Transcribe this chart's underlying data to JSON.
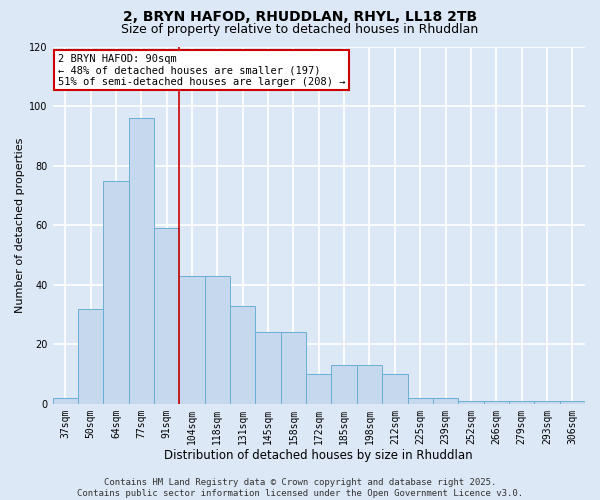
{
  "title1": "2, BRYN HAFOD, RHUDDLAN, RHYL, LL18 2TB",
  "title2": "Size of property relative to detached houses in Rhuddlan",
  "xlabel": "Distribution of detached houses by size in Rhuddlan",
  "ylabel": "Number of detached properties",
  "categories": [
    "37sqm",
    "50sqm",
    "64sqm",
    "77sqm",
    "91sqm",
    "104sqm",
    "118sqm",
    "131sqm",
    "145sqm",
    "158sqm",
    "172sqm",
    "185sqm",
    "198sqm",
    "212sqm",
    "225sqm",
    "239sqm",
    "252sqm",
    "266sqm",
    "279sqm",
    "293sqm",
    "306sqm"
  ],
  "bar_values": [
    2,
    32,
    75,
    96,
    59,
    43,
    43,
    33,
    24,
    24,
    10,
    13,
    13,
    10,
    2,
    2,
    1,
    1,
    1,
    1,
    1
  ],
  "bar_color": "#c5d8ee",
  "bar_edge_color": "#6baed6",
  "vline_color": "#cc0000",
  "vline_x_idx": 4,
  "ylim": [
    0,
    120
  ],
  "yticks": [
    0,
    20,
    40,
    60,
    80,
    100,
    120
  ],
  "annotation_title": "2 BRYN HAFOD: 90sqm",
  "annotation_line1": "← 48% of detached houses are smaller (197)",
  "annotation_line2": "51% of semi-detached houses are larger (208) →",
  "annotation_box_facecolor": "white",
  "annotation_box_edgecolor": "#cc0000",
  "footer1": "Contains HM Land Registry data © Crown copyright and database right 2025.",
  "footer2": "Contains public sector information licensed under the Open Government Licence v3.0.",
  "bg_color": "#dce8f5",
  "grid_color": "white",
  "title1_fontsize": 10,
  "title2_fontsize": 9,
  "xlabel_fontsize": 8.5,
  "ylabel_fontsize": 8,
  "tick_fontsize": 7,
  "annotation_fontsize": 7.5,
  "footer_fontsize": 6.5
}
